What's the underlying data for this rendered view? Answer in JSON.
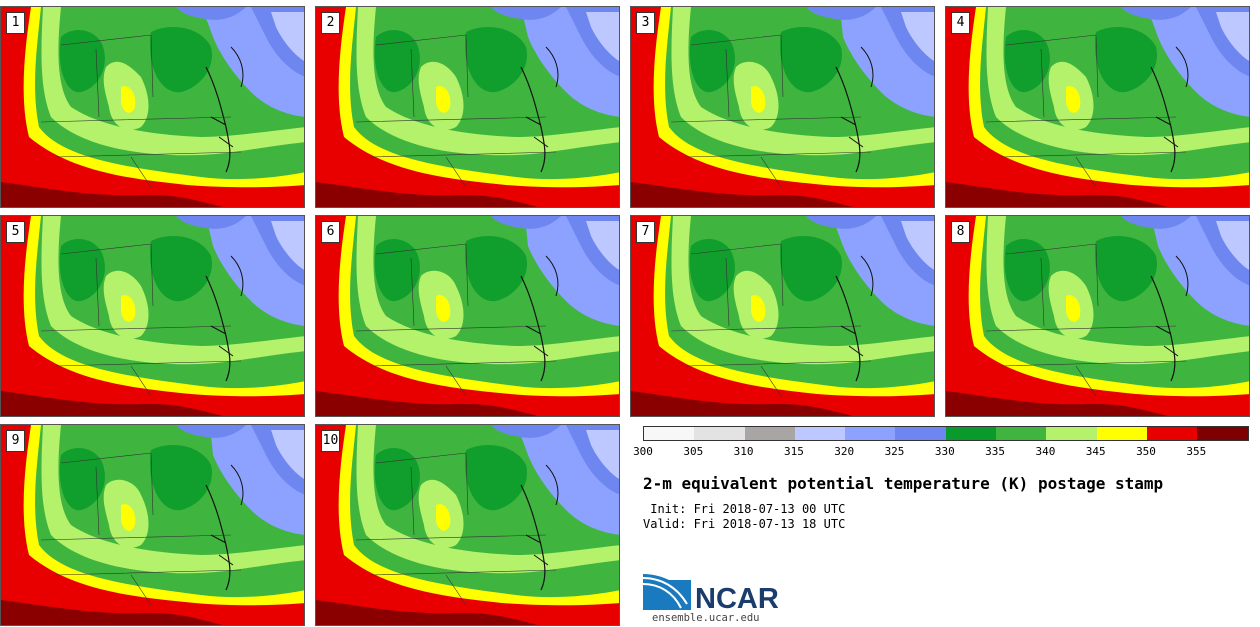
{
  "panels": [
    "1",
    "2",
    "3",
    "4",
    "5",
    "6",
    "7",
    "8",
    "9",
    "10"
  ],
  "colorbar": {
    "colors": [
      "#f7f7f7",
      "#e3e3e3",
      "#aaa5a5",
      "#bcc8ff",
      "#8da2ff",
      "#6e86f0",
      "#089a2a",
      "#3fb53f",
      "#b3f26a",
      "#ffff00",
      "#e80000",
      "#7f0000"
    ],
    "ticks": [
      "300",
      "305",
      "310",
      "315",
      "320",
      "325",
      "330",
      "335",
      "340",
      "345",
      "350",
      "355"
    ]
  },
  "title": "2-m equivalent potential temperature (K) postage stamp",
  "init": " Init: Fri 2018-07-13 00 UTC",
  "valid": "Valid: Fri 2018-07-13 18 UTC",
  "logo": {
    "text": "NCAR",
    "url": "ensemble.ucar.edu"
  }
}
